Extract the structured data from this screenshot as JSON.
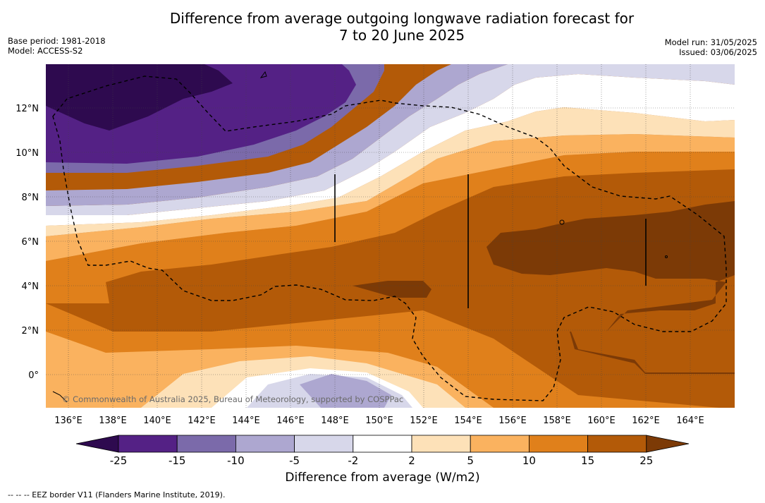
{
  "header": {
    "title_line1": "Difference from average outgoing longwave radiation forecast for",
    "title_line2": "7 to 20 June 2025",
    "base_period": "Base period: 1981-2018",
    "model": "Model: ACCESS-S2",
    "model_run": "Model run: 31/05/2025",
    "issued": "Issued: 03/06/2025"
  },
  "map": {
    "longitude_labels": [
      "136°E",
      "138°E",
      "140°E",
      "142°E",
      "144°E",
      "146°E",
      "148°E",
      "150°E",
      "152°E",
      "154°E",
      "156°E",
      "158°E",
      "160°E",
      "162°E",
      "164°E"
    ],
    "latitude_labels": [
      "12°N",
      "10°N",
      "8°N",
      "6°N",
      "4°N",
      "2°N",
      "0°"
    ],
    "copyright": "© Commonwealth of Australia 2025, Bureau of Meteorology, supported by COSPPac",
    "grid": "dotted"
  },
  "legend": {
    "title": "Difference from average (W/m2)",
    "tick_labels": [
      "-25",
      "-15",
      "-10",
      "-5",
      "-2",
      "2",
      "5",
      "10",
      "15",
      "25"
    ],
    "colors": [
      "#2e0a4f",
      "#542185",
      "#7b6aaa",
      "#ada7d0",
      "#d7d7ea",
      "#ffffff",
      "#fde1b8",
      "#fab25f",
      "#e0801b",
      "#b35a08",
      "#7c3a06"
    ]
  },
  "footer": {
    "eez_note": "--  --  -- EEZ border V11 (Flanders Marine Institute, 2019)."
  }
}
